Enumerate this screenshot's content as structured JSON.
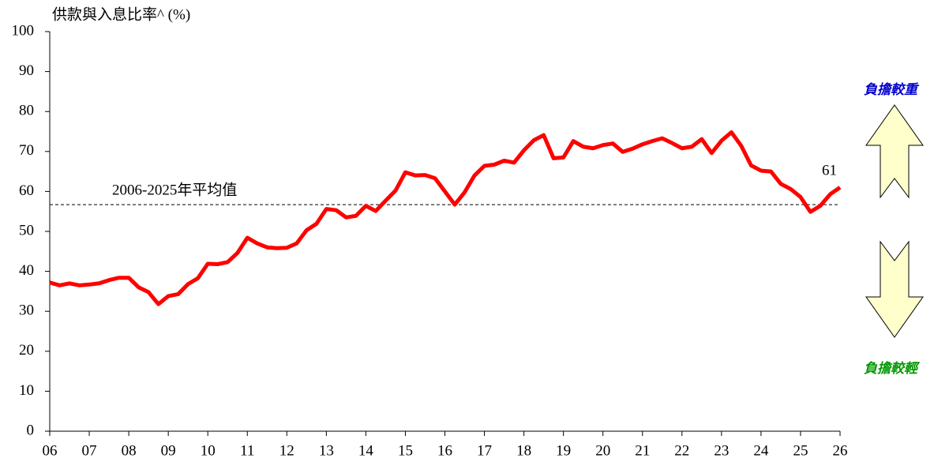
{
  "chart_data": {
    "type": "line",
    "y_axis_label": "供款與入息比率^ (%)",
    "x": [
      2006,
      2006.25,
      2006.5,
      2006.75,
      2007,
      2007.25,
      2007.5,
      2007.75,
      2008,
      2008.25,
      2008.5,
      2008.75,
      2009,
      2009.25,
      2009.5,
      2009.75,
      2010,
      2010.25,
      2010.5,
      2010.75,
      2011,
      2011.25,
      2011.5,
      2011.75,
      2012,
      2012.25,
      2012.5,
      2012.75,
      2013,
      2013.25,
      2013.5,
      2013.75,
      2014,
      2014.25,
      2014.5,
      2014.75,
      2015,
      2015.25,
      2015.5,
      2015.75,
      2016,
      2016.25,
      2016.5,
      2016.75,
      2017,
      2017.25,
      2017.5,
      2017.75,
      2018,
      2018.25,
      2018.5,
      2018.75,
      2019,
      2019.25,
      2019.5,
      2019.75,
      2020,
      2020.25,
      2020.5,
      2020.75,
      2021,
      2021.25,
      2021.5,
      2021.75,
      2022,
      2022.25,
      2022.5,
      2022.75,
      2023,
      2023.25,
      2023.5,
      2023.75,
      2024,
      2024.25,
      2024.5,
      2024.75,
      2025,
      2025.25,
      2025.5,
      2025.75,
      2026
    ],
    "values": [
      37.2,
      36.5,
      37.0,
      36.5,
      36.7,
      37.0,
      37.8,
      38.4,
      38.4,
      36.0,
      34.8,
      31.8,
      33.8,
      34.3,
      36.8,
      38.3,
      41.9,
      41.8,
      42.3,
      44.6,
      48.4,
      47.0,
      46.0,
      45.8,
      45.9,
      47.0,
      50.3,
      51.9,
      55.6,
      55.3,
      53.5,
      53.9,
      56.4,
      55.1,
      57.7,
      60.2,
      64.8,
      64.0,
      64.1,
      63.3,
      60.0,
      56.7,
      59.8,
      64.0,
      66.4,
      66.7,
      67.7,
      67.2,
      70.3,
      72.8,
      74.1,
      68.3,
      68.5,
      72.6,
      71.2,
      70.8,
      71.6,
      72.0,
      69.9,
      70.7,
      71.8,
      72.6,
      73.3,
      72.1,
      70.8,
      71.2,
      73.1,
      69.6,
      72.7,
      74.8,
      71.4,
      66.5,
      65.2,
      65.0,
      61.9,
      60.6,
      58.6,
      54.9,
      56.4,
      59.3,
      61
    ],
    "color": "#ff0000",
    "average": {
      "label": "2006-2025年平均值",
      "value": 56.7
    },
    "heavier_label": "負擔較重",
    "lighter_label": "負擔較輕",
    "xlim": [
      2006,
      2026
    ],
    "xticks": [
      {
        "value": 2006,
        "label": "06"
      },
      {
        "value": 2007,
        "label": "07"
      },
      {
        "value": 2008,
        "label": "08"
      },
      {
        "value": 2009,
        "label": "09"
      },
      {
        "value": 2010,
        "label": "10"
      },
      {
        "value": 2011,
        "label": "11"
      },
      {
        "value": 2012,
        "label": "12"
      },
      {
        "value": 2013,
        "label": "13"
      },
      {
        "value": 2014,
        "label": "14"
      },
      {
        "value": 2015,
        "label": "15"
      },
      {
        "value": 2016,
        "label": "16"
      },
      {
        "value": 2017,
        "label": "17"
      },
      {
        "value": 2018,
        "label": "18"
      },
      {
        "value": 2019,
        "label": "19"
      },
      {
        "value": 2020,
        "label": "20"
      },
      {
        "value": 2021,
        "label": "21"
      },
      {
        "value": 2022,
        "label": "22"
      },
      {
        "value": 2023,
        "label": "23"
      },
      {
        "value": 2024,
        "label": "24"
      },
      {
        "value": 2025,
        "label": "25"
      },
      {
        "value": 2026,
        "label": "26"
      }
    ],
    "ylim": [
      0,
      100
    ],
    "yticks": [
      0,
      10,
      20,
      30,
      40,
      50,
      60,
      70,
      80,
      90,
      100
    ]
  }
}
